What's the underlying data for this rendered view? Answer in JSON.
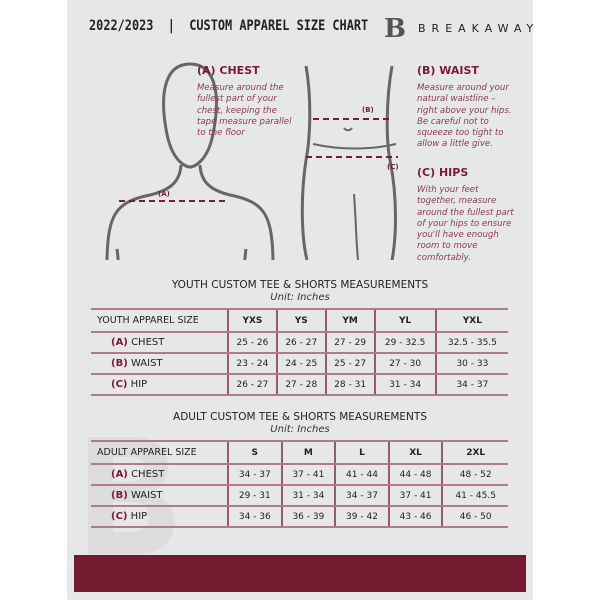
{
  "header": {
    "title": "2022/2023  |  CUSTOM APPAREL SIZE CHART",
    "brand": "BREAKAWAY",
    "logo_letter": "B"
  },
  "guide": {
    "chest": {
      "heading": "(A) CHEST",
      "text": "Measure around the fullest part of your chest, keeping the tape measure parallel to the floor",
      "marker": "(A)"
    },
    "waist": {
      "heading": "(B) WAIST",
      "text": "Measure around your natural waistline – right above your hips. Be careful not to squeeze too tight to allow a little give.",
      "marker": "(B)"
    },
    "hips": {
      "heading": "(C) HIPS",
      "text": "With your feet together, measure around the fullest part of your hips to ensure you'll have enough room to move comfortably.",
      "marker": "(C)"
    }
  },
  "youth": {
    "title": "YOUTH CUSTOM TEE & SHORTS MEASUREMENTS",
    "unit": "Unit: Inches",
    "header": [
      "YOUTH APPAREL SIZE",
      "YXS",
      "YS",
      "YM",
      "YL",
      "YXL"
    ],
    "rows": [
      {
        "tag": "(A)",
        "label": "CHEST",
        "values": [
          "25 - 26",
          "26 - 27",
          "27 - 29",
          "29 - 32.5",
          "32.5 - 35.5"
        ]
      },
      {
        "tag": "(B)",
        "label": "WAIST",
        "values": [
          "23 - 24",
          "24 - 25",
          "25 - 27",
          "27 - 30",
          "30 - 33"
        ]
      },
      {
        "tag": "(C)",
        "label": "HIP",
        "values": [
          "26 - 27",
          "27 - 28",
          "28 - 31",
          "31 - 34",
          "34 - 37"
        ]
      }
    ]
  },
  "adult": {
    "title": "ADULT CUSTOM TEE & SHORTS MEASUREMENTS",
    "unit": "Unit: Inches",
    "header": [
      "ADULT APPAREL SIZE",
      "S",
      "M",
      "L",
      "XL",
      "2XL"
    ],
    "rows": [
      {
        "tag": "(A)",
        "label": "CHEST",
        "values": [
          "34 - 37",
          "37 - 41",
          "41 - 44",
          "44 - 48",
          "48 - 52"
        ]
      },
      {
        "tag": "(B)",
        "label": "WAIST",
        "values": [
          "29 - 31",
          "31 - 34",
          "34 - 37",
          "37 - 41",
          "41 - 45.5"
        ]
      },
      {
        "tag": "(C)",
        "label": "HIP",
        "values": [
          "34 - 36",
          "36 - 39",
          "39 - 42",
          "43 - 46",
          "46 - 50"
        ]
      }
    ]
  },
  "colors": {
    "accent": "#731b30",
    "background": "#e6e7e8"
  }
}
